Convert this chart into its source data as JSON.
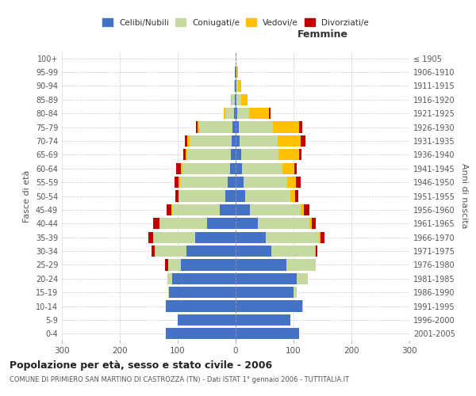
{
  "age_groups": [
    "0-4",
    "5-9",
    "10-14",
    "15-19",
    "20-24",
    "25-29",
    "30-34",
    "35-39",
    "40-44",
    "45-49",
    "50-54",
    "55-59",
    "60-64",
    "65-69",
    "70-74",
    "75-79",
    "80-84",
    "85-89",
    "90-94",
    "95-99",
    "100+"
  ],
  "birth_years": [
    "2001-2005",
    "1996-2000",
    "1991-1995",
    "1986-1990",
    "1981-1985",
    "1976-1980",
    "1971-1975",
    "1966-1970",
    "1961-1965",
    "1956-1960",
    "1951-1955",
    "1946-1950",
    "1941-1945",
    "1936-1940",
    "1931-1935",
    "1926-1930",
    "1921-1925",
    "1916-1920",
    "1911-1915",
    "1906-1910",
    "≤ 1905"
  ],
  "males": {
    "celibi": [
      120,
      100,
      120,
      115,
      110,
      95,
      85,
      70,
      50,
      28,
      18,
      14,
      10,
      8,
      7,
      5,
      3,
      2,
      1,
      1,
      0
    ],
    "coniugati": [
      0,
      0,
      1,
      2,
      8,
      22,
      55,
      72,
      82,
      82,
      80,
      82,
      82,
      75,
      72,
      58,
      15,
      5,
      2,
      0,
      0
    ],
    "vedovi": [
      0,
      0,
      0,
      0,
      0,
      0,
      0,
      0,
      0,
      1,
      1,
      2,
      3,
      3,
      5,
      3,
      2,
      1,
      0,
      0,
      0
    ],
    "divorziati": [
      0,
      0,
      0,
      0,
      0,
      5,
      5,
      8,
      10,
      8,
      5,
      8,
      8,
      5,
      3,
      2,
      0,
      0,
      0,
      0,
      0
    ]
  },
  "females": {
    "nubili": [
      110,
      95,
      115,
      100,
      105,
      88,
      62,
      52,
      38,
      25,
      17,
      14,
      11,
      9,
      7,
      5,
      3,
      2,
      1,
      1,
      0
    ],
    "coniugate": [
      0,
      0,
      2,
      5,
      20,
      50,
      75,
      92,
      90,
      88,
      78,
      75,
      70,
      65,
      65,
      60,
      20,
      8,
      3,
      1,
      0
    ],
    "vedove": [
      0,
      0,
      0,
      0,
      0,
      0,
      1,
      2,
      3,
      5,
      8,
      15,
      20,
      35,
      40,
      45,
      35,
      10,
      5,
      2,
      0
    ],
    "divorziate": [
      0,
      0,
      0,
      0,
      0,
      0,
      3,
      8,
      8,
      10,
      5,
      8,
      5,
      5,
      8,
      5,
      2,
      0,
      0,
      0,
      0
    ]
  },
  "colors": {
    "celibi": "#4472C4",
    "coniugati": "#c5d9a0",
    "vedovi": "#ffc000",
    "divorziati": "#c00000"
  },
  "title": "Popolazione per età, sesso e stato civile - 2006",
  "subtitle": "COMUNE DI PRIMIERO SAN MARTINO DI CASTROZZA (TN) - Dati ISTAT 1° gennaio 2006 - TUTTITALIA.IT",
  "xlabel_right": "Femmine",
  "ylabel_left": "Fasce di età",
  "ylabel_right": "Anni di nascita",
  "xlim": 300,
  "background_color": "#ffffff",
  "grid_color": "#cccccc"
}
